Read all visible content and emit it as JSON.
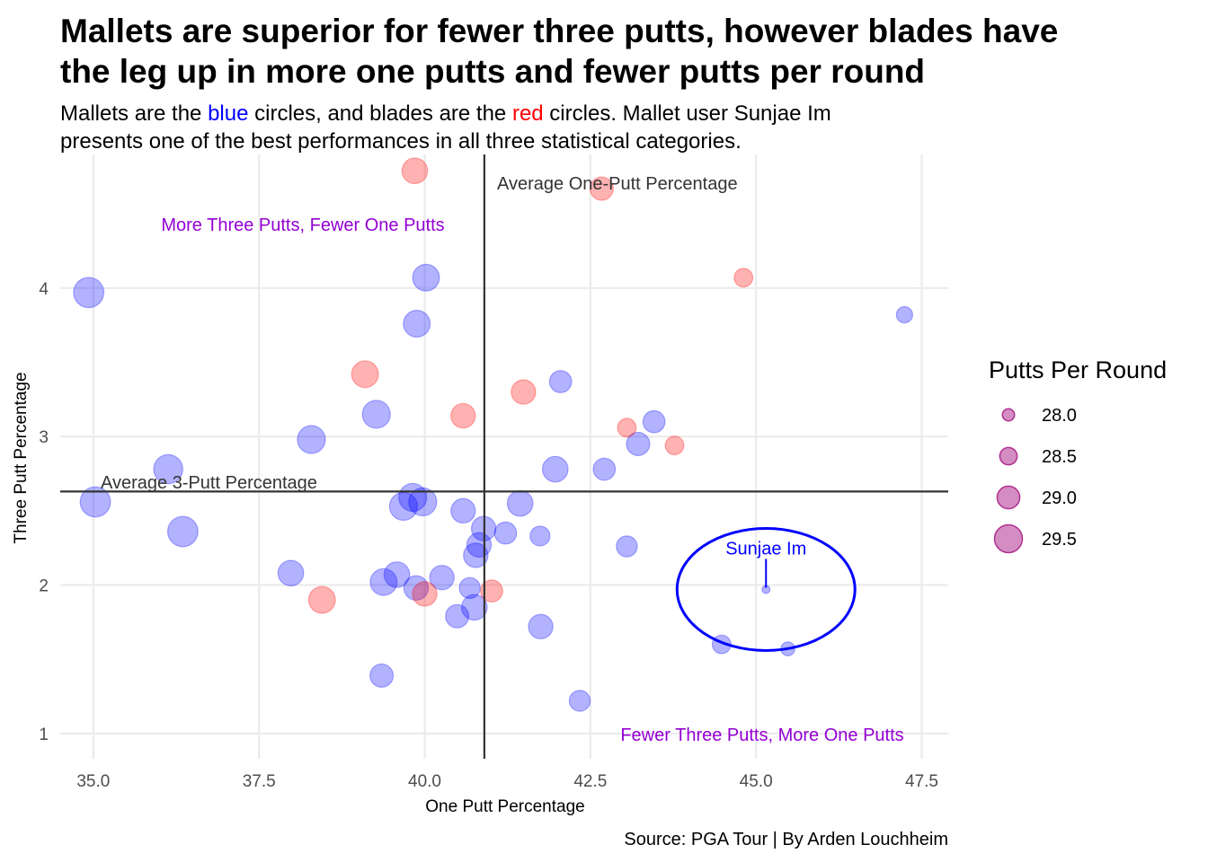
{
  "colors": {
    "mallet": "#0000ff",
    "blade": "#ff0000",
    "quadrant": "#9400d3",
    "reference": "#333333",
    "grid": "#ebebeb",
    "legend_point": "#b03090"
  },
  "chart_data": {
    "type": "scatter",
    "title_lines": [
      "Mallets are superior for fewer three putts, however blades have",
      "the leg up in more one putts and fewer putts per round"
    ],
    "subtitle": {
      "line1": {
        "pre": "Mallets are the ",
        "blue": "blue",
        "mid": " circles, and blades are the ",
        "red": "red",
        "post": " circles. Mallet user Sunjae Im"
      },
      "line2": "presents one of the best performances in all three statistical categories."
    },
    "xlabel": "One Putt Percentage",
    "ylabel": "Three Putt Percentage",
    "xlim": [
      34.5,
      47.9
    ],
    "ylim": [
      0.83,
      4.9
    ],
    "x_ticks": [
      {
        "value": 35.0,
        "label": "35.0"
      },
      {
        "value": 37.5,
        "label": "37.5"
      },
      {
        "value": 40.0,
        "label": "40.0"
      },
      {
        "value": 42.5,
        "label": "42.5"
      },
      {
        "value": 45.0,
        "label": "45.0"
      },
      {
        "value": 47.5,
        "label": "47.5"
      }
    ],
    "y_ticks": [
      {
        "value": 1,
        "label": "1"
      },
      {
        "value": 2,
        "label": "2"
      },
      {
        "value": 3,
        "label": "3"
      },
      {
        "value": 4,
        "label": "4"
      }
    ],
    "grid": true,
    "reference_lines": {
      "avg_one_putt_x": 40.9,
      "avg_three_putt_y": 2.63,
      "avg_one_putt_label": "Average One-Putt Percentage",
      "avg_three_putt_label": "Average 3-Putt Percentage"
    },
    "quadrant_labels": {
      "top_left": "More Three Putts, Fewer One Putts",
      "bottom_right": "Fewer Three Putts, More One Putts"
    },
    "highlight": {
      "label": "Sunjae Im",
      "x": 45.15,
      "y": 1.97
    },
    "legend": {
      "title": "Putts Per Round",
      "placement": "right",
      "entries": [
        {
          "value": 28.0,
          "label": "28.0"
        },
        {
          "value": 28.5,
          "label": "28.5"
        },
        {
          "value": 29.0,
          "label": "29.0"
        },
        {
          "value": 29.5,
          "label": "29.5"
        }
      ]
    },
    "caption": "Source: PGA Tour | By Arden Louchheim",
    "size_variable": "Putts Per Round",
    "size_range": [
      27.8,
      29.8
    ],
    "series": [
      {
        "group": "mallet",
        "points": [
          {
            "x": 34.93,
            "y": 3.97,
            "size": 29.7
          },
          {
            "x": 35.03,
            "y": 2.56,
            "size": 29.7
          },
          {
            "x": 36.13,
            "y": 2.78,
            "size": 29.6
          },
          {
            "x": 36.35,
            "y": 2.36,
            "size": 29.7
          },
          {
            "x": 37.98,
            "y": 2.08,
            "size": 29.3
          },
          {
            "x": 38.29,
            "y": 2.98,
            "size": 29.5
          },
          {
            "x": 39.27,
            "y": 3.15,
            "size": 29.5
          },
          {
            "x": 39.35,
            "y": 1.39,
            "size": 29.1
          },
          {
            "x": 39.38,
            "y": 2.02,
            "size": 29.4
          },
          {
            "x": 39.58,
            "y": 2.07,
            "size": 29.3
          },
          {
            "x": 39.68,
            "y": 2.53,
            "size": 29.5
          },
          {
            "x": 39.82,
            "y": 2.59,
            "size": 29.5
          },
          {
            "x": 39.87,
            "y": 1.98,
            "size": 29.2
          },
          {
            "x": 39.88,
            "y": 3.76,
            "size": 29.4
          },
          {
            "x": 39.97,
            "y": 2.56,
            "size": 29.5
          },
          {
            "x": 40.02,
            "y": 4.07,
            "size": 29.4
          },
          {
            "x": 40.26,
            "y": 2.05,
            "size": 29.2
          },
          {
            "x": 40.49,
            "y": 1.79,
            "size": 29.1
          },
          {
            "x": 40.58,
            "y": 2.5,
            "size": 29.2
          },
          {
            "x": 40.68,
            "y": 1.98,
            "size": 28.9
          },
          {
            "x": 40.75,
            "y": 1.85,
            "size": 29.3
          },
          {
            "x": 40.77,
            "y": 2.2,
            "size": 29.2
          },
          {
            "x": 40.82,
            "y": 2.27,
            "size": 29.2
          },
          {
            "x": 40.89,
            "y": 2.38,
            "size": 29.2
          },
          {
            "x": 41.22,
            "y": 2.35,
            "size": 29.0
          },
          {
            "x": 41.44,
            "y": 2.55,
            "size": 29.3
          },
          {
            "x": 41.74,
            "y": 2.33,
            "size": 28.8
          },
          {
            "x": 41.75,
            "y": 1.72,
            "size": 29.2
          },
          {
            "x": 41.97,
            "y": 2.78,
            "size": 29.3
          },
          {
            "x": 42.05,
            "y": 3.37,
            "size": 29.0
          },
          {
            "x": 42.34,
            "y": 1.22,
            "size": 28.9
          },
          {
            "x": 42.71,
            "y": 2.78,
            "size": 29.0
          },
          {
            "x": 43.05,
            "y": 2.26,
            "size": 28.9
          },
          {
            "x": 43.22,
            "y": 2.95,
            "size": 29.1
          },
          {
            "x": 43.46,
            "y": 3.1,
            "size": 29.0
          },
          {
            "x": 44.48,
            "y": 1.6,
            "size": 28.7
          },
          {
            "x": 45.15,
            "y": 1.97,
            "size": 27.8
          },
          {
            "x": 45.48,
            "y": 1.57,
            "size": 28.3
          },
          {
            "x": 47.24,
            "y": 3.82,
            "size": 28.5
          }
        ]
      },
      {
        "group": "blade",
        "points": [
          {
            "x": 38.45,
            "y": 1.9,
            "size": 29.4
          },
          {
            "x": 39.1,
            "y": 3.42,
            "size": 29.4
          },
          {
            "x": 39.85,
            "y": 4.79,
            "size": 29.3
          },
          {
            "x": 40.0,
            "y": 1.94,
            "size": 29.2
          },
          {
            "x": 40.58,
            "y": 3.14,
            "size": 29.2
          },
          {
            "x": 41.01,
            "y": 1.96,
            "size": 29.0
          },
          {
            "x": 41.49,
            "y": 3.3,
            "size": 29.2
          },
          {
            "x": 42.67,
            "y": 4.67,
            "size": 29.1
          },
          {
            "x": 43.05,
            "y": 3.06,
            "size": 28.7
          },
          {
            "x": 43.77,
            "y": 2.94,
            "size": 28.7
          },
          {
            "x": 44.81,
            "y": 4.07,
            "size": 28.7
          }
        ]
      }
    ]
  }
}
